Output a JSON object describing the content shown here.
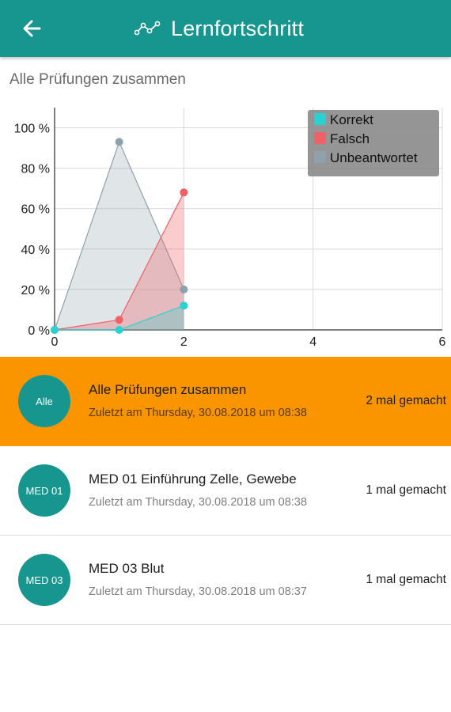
{
  "appbar": {
    "title": "Lernfortschritt",
    "back_icon": "arrow-left-icon",
    "title_icon": "line-chart-icon",
    "color": "#17968f"
  },
  "section_title": "Alle Prüfungen zusammen",
  "chart_data": {
    "type": "area",
    "title": "",
    "xlabel": "",
    "ylabel": "",
    "xlim": [
      0,
      6
    ],
    "ylim": [
      0,
      110
    ],
    "xticks": [
      0,
      2,
      4,
      6
    ],
    "yticks": [
      0,
      20,
      40,
      60,
      80,
      100
    ],
    "ytick_suffix": " %",
    "grid": true,
    "legend_position": "top-right",
    "x": [
      0,
      1,
      2
    ],
    "series": [
      {
        "name": "Korrekt",
        "color": "#2bd0d0",
        "values": [
          0,
          0,
          12
        ]
      },
      {
        "name": "Falsch",
        "color": "#ee6166",
        "values": [
          0,
          5,
          68
        ]
      },
      {
        "name": "Unbeantwortet",
        "color": "#8fa2ab",
        "values": [
          0,
          93,
          20
        ]
      }
    ]
  },
  "list": [
    {
      "avatar": "Alle",
      "title": "Alle Prüfungen zusammen",
      "subtitle": "Zuletzt am Thursday, 30.08.2018 um 08:38",
      "count": "2 mal gemacht",
      "active": true
    },
    {
      "avatar": "MED 01",
      "title": "MED 01 Einführung Zelle, Gewebe",
      "subtitle": "Zuletzt am Thursday, 30.08.2018 um 08:38",
      "count": "1 mal gemacht",
      "active": false
    },
    {
      "avatar": "MED 03",
      "title": "MED 03 Blut",
      "subtitle": "Zuletzt am Thursday, 30.08.2018 um 08:37",
      "count": "1 mal gemacht",
      "active": false
    }
  ]
}
